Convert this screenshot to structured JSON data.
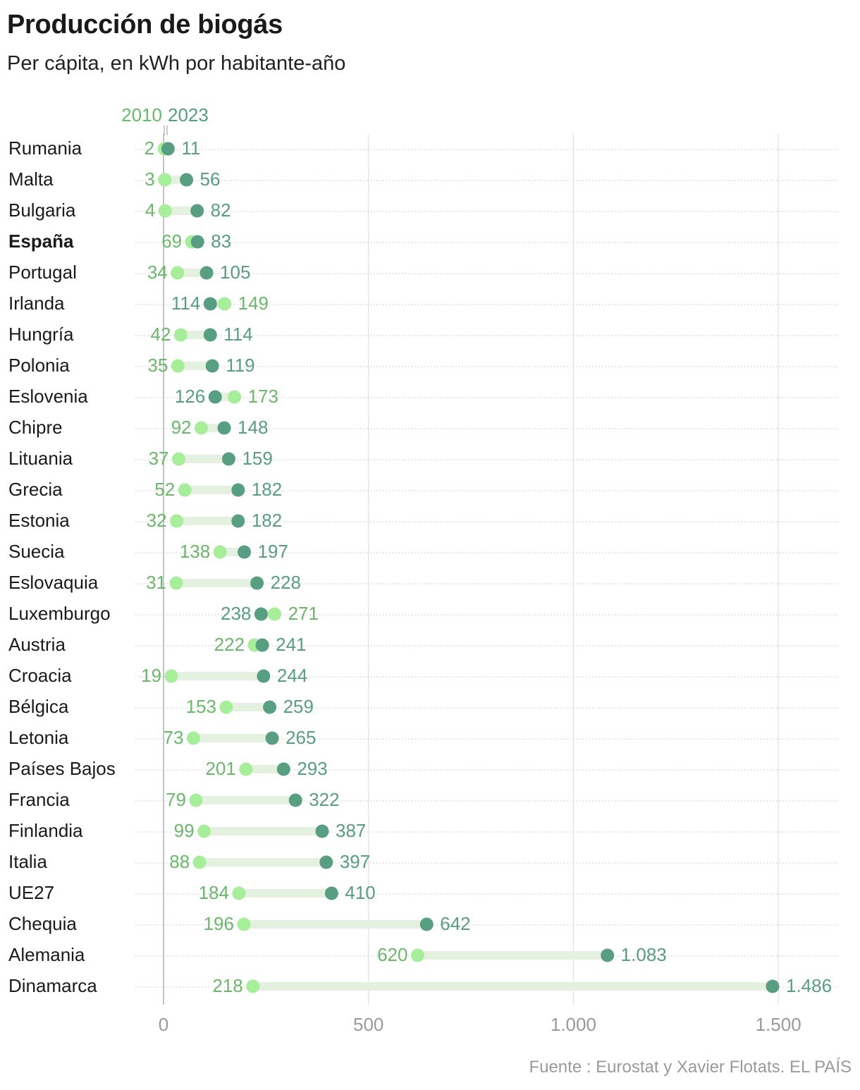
{
  "title": "Producción de biogás",
  "subtitle": "Per cápita, en kWh por habitante-año",
  "source": "Fuente : Eurostat y Xavier Flotats. EL PAÍS",
  "colors": {
    "c2010": "#a6ee9a",
    "c2023": "#579e82",
    "label2010": "#6ab86a",
    "label2023": "#579e82",
    "band": "#e4f1df"
  },
  "chart_data": {
    "type": "dumbbell",
    "title": "Producción de biogás",
    "subtitle": "Per cápita, en kWh por habitante-año",
    "series_names": [
      "2010",
      "2023"
    ],
    "xlim": [
      0,
      1600
    ],
    "x_ticks": [
      0,
      500,
      1000,
      1500
    ],
    "x_tick_labels": [
      "0",
      "500",
      "1.000",
      "1.500"
    ],
    "highlight": "España",
    "rows": [
      {
        "country": "Rumania",
        "v2010": 2,
        "v2023": 11,
        "l2010": "2",
        "l2023": "11"
      },
      {
        "country": "Malta",
        "v2010": 3,
        "v2023": 56,
        "l2010": "3",
        "l2023": "56"
      },
      {
        "country": "Bulgaria",
        "v2010": 4,
        "v2023": 82,
        "l2010": "4",
        "l2023": "82"
      },
      {
        "country": "España",
        "v2010": 69,
        "v2023": 83,
        "l2010": "69",
        "l2023": "83"
      },
      {
        "country": "Portugal",
        "v2010": 34,
        "v2023": 105,
        "l2010": "34",
        "l2023": "105"
      },
      {
        "country": "Irlanda",
        "v2010": 149,
        "v2023": 114,
        "l2010": "149",
        "l2023": "114"
      },
      {
        "country": "Hungría",
        "v2010": 42,
        "v2023": 114,
        "l2010": "42",
        "l2023": "114"
      },
      {
        "country": "Polonia",
        "v2010": 35,
        "v2023": 119,
        "l2010": "35",
        "l2023": "119"
      },
      {
        "country": "Eslovenia",
        "v2010": 173,
        "v2023": 126,
        "l2010": "173",
        "l2023": "126"
      },
      {
        "country": "Chipre",
        "v2010": 92,
        "v2023": 148,
        "l2010": "92",
        "l2023": "148"
      },
      {
        "country": "Lituania",
        "v2010": 37,
        "v2023": 159,
        "l2010": "37",
        "l2023": "159"
      },
      {
        "country": "Grecia",
        "v2010": 52,
        "v2023": 182,
        "l2010": "52",
        "l2023": "182"
      },
      {
        "country": "Estonia",
        "v2010": 32,
        "v2023": 182,
        "l2010": "32",
        "l2023": "182"
      },
      {
        "country": "Suecia",
        "v2010": 138,
        "v2023": 197,
        "l2010": "138",
        "l2023": "197"
      },
      {
        "country": "Eslovaquia",
        "v2010": 31,
        "v2023": 228,
        "l2010": "31",
        "l2023": "228"
      },
      {
        "country": "Luxemburgo",
        "v2010": 271,
        "v2023": 238,
        "l2010": "271",
        "l2023": "238"
      },
      {
        "country": "Austria",
        "v2010": 222,
        "v2023": 241,
        "l2010": "222",
        "l2023": "241"
      },
      {
        "country": "Croacia",
        "v2010": 19,
        "v2023": 244,
        "l2010": "19",
        "l2023": "244"
      },
      {
        "country": "Bélgica",
        "v2010": 153,
        "v2023": 259,
        "l2010": "153",
        "l2023": "259"
      },
      {
        "country": "Letonia",
        "v2010": 73,
        "v2023": 265,
        "l2010": "73",
        "l2023": "265"
      },
      {
        "country": "Países Bajos",
        "v2010": 201,
        "v2023": 293,
        "l2010": "201",
        "l2023": "293"
      },
      {
        "country": "Francia",
        "v2010": 79,
        "v2023": 322,
        "l2010": "79",
        "l2023": "322"
      },
      {
        "country": "Finlandia",
        "v2010": 99,
        "v2023": 387,
        "l2010": "99",
        "l2023": "387"
      },
      {
        "country": "Italia",
        "v2010": 88,
        "v2023": 397,
        "l2010": "88",
        "l2023": "397"
      },
      {
        "country": "UE27",
        "v2010": 184,
        "v2023": 410,
        "l2010": "184",
        "l2023": "410"
      },
      {
        "country": "Chequia",
        "v2010": 196,
        "v2023": 642,
        "l2010": "196",
        "l2023": "642"
      },
      {
        "country": "Alemania",
        "v2010": 620,
        "v2023": 1083,
        "l2010": "620",
        "l2023": "1.083"
      },
      {
        "country": "Dinamarca",
        "v2010": 218,
        "v2023": 1486,
        "l2010": "218",
        "l2023": "1.486"
      }
    ]
  }
}
